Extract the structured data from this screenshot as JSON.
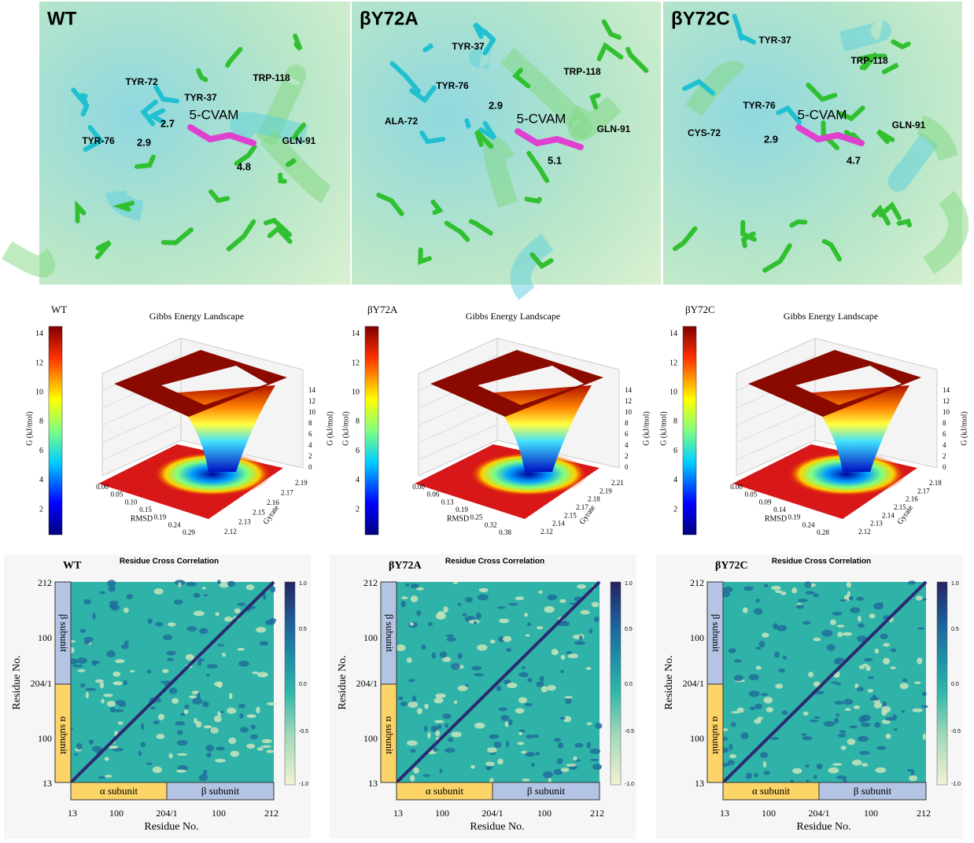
{
  "structures": [
    {
      "label": "WT",
      "residues": [
        "TYR-72",
        "TYR-37",
        "TYR-76",
        "TRP-118",
        "GLN-91"
      ],
      "ligand": "5-CVAM",
      "distances": [
        "2.7",
        "2.9",
        "4.8"
      ]
    },
    {
      "label": "βY72A",
      "residues": [
        "TYR-37",
        "TYR-76",
        "ALA-72",
        "TRP-118",
        "GLN-91"
      ],
      "ligand": "5-CVAM",
      "distances": [
        "2.9",
        "5.1"
      ]
    },
    {
      "label": "βY72C",
      "residues": [
        "TYR-37",
        "TYR-76",
        "CYS-72",
        "TRP-118",
        "GLN-91"
      ],
      "ligand": "5-CVAM",
      "distances": [
        "2.9",
        "4.7"
      ]
    }
  ],
  "landscapes": [
    {
      "label": "WT",
      "title": "Gibbs Energy Landscape",
      "colorbar_label": "G (kJ/mol)",
      "colorbar_ticks": [
        "2",
        "4",
        "6",
        "8",
        "10",
        "12",
        "14"
      ],
      "z_label": "G (kJ/mol)",
      "z_ticks": [
        "0",
        "2",
        "4",
        "6",
        "8",
        "10",
        "12",
        "14"
      ],
      "x_label": "RMSD",
      "x_ticks": [
        "0.00",
        "0.05",
        "0.10",
        "0.15",
        "0.19",
        "0.24",
        "0.29"
      ],
      "y_label": "Gyrate",
      "y_ticks": [
        "2.12",
        "2.13",
        "2.15",
        "2.16",
        "2.17",
        "2.19"
      ]
    },
    {
      "label": "βY72A",
      "title": "Gibbs Energy Landscape",
      "colorbar_label": "G (kJ/mol)",
      "colorbar_ticks": [
        "2",
        "4",
        "6",
        "8",
        "10",
        "12",
        "14"
      ],
      "z_label": "G (kJ/mol)",
      "z_ticks": [
        "0",
        "2",
        "4",
        "6",
        "8",
        "10",
        "12",
        "14"
      ],
      "x_label": "RMSD",
      "x_ticks": [
        "0.00",
        "0.06",
        "0.13",
        "0.19",
        "0.25",
        "0.32",
        "0.38"
      ],
      "y_label": "Gyrate",
      "y_ticks": [
        "2.12",
        "2.14",
        "2.15",
        "2.17",
        "2.18",
        "2.19",
        "2.21"
      ]
    },
    {
      "label": "βY72C",
      "title": "Gibbs Energy Landscape",
      "colorbar_label": "G (kJ/mol)",
      "colorbar_ticks": [
        "2",
        "4",
        "6",
        "8",
        "10",
        "12",
        "14"
      ],
      "z_label": "G (kJ/mol)",
      "z_ticks": [
        "0",
        "2",
        "4",
        "6",
        "8",
        "10",
        "12",
        "14"
      ],
      "x_label": "RMSD",
      "x_ticks": [
        "0.00",
        "0.05",
        "0.09",
        "0.14",
        "0.19",
        "0.24",
        "0.28"
      ],
      "y_label": "Gyrate",
      "y_ticks": [
        "2.12",
        "2.13",
        "2.14",
        "2.15",
        "2.16",
        "2.17",
        "2.18"
      ]
    }
  ],
  "correlations": [
    {
      "label": "WT",
      "title": "Residue Cross Correlation",
      "x_label": "Residue No.",
      "y_label": "Residue No.",
      "ticks": [
        "13",
        "100",
        "204/1",
        "100",
        "212"
      ],
      "subunits": [
        "α subunit",
        "β subunit"
      ],
      "colorbar_ticks": [
        "-1.0",
        "-0.5",
        "0.0",
        "0.5",
        "1.0"
      ]
    },
    {
      "label": "βY72A",
      "title": "Residue Cross Correlation",
      "x_label": "Residue No.",
      "y_label": "Residue No.",
      "ticks": [
        "13",
        "100",
        "204/1",
        "100",
        "212"
      ],
      "subunits": [
        "α subunit",
        "β subunit"
      ],
      "colorbar_ticks": [
        "-1.0",
        "-0.5",
        "0.0",
        "0.5",
        "1.0"
      ]
    },
    {
      "label": "βY72C",
      "title": "Residue Cross Correlation",
      "x_label": "Residue No.",
      "y_label": "Residue No.",
      "ticks": [
        "13",
        "100",
        "204/1",
        "100",
        "212"
      ],
      "subunits": [
        "α subunit",
        "β subunit"
      ],
      "colorbar_ticks": [
        "-1.0",
        "-0.5",
        "0.0",
        "0.5",
        "1.0"
      ]
    }
  ]
}
